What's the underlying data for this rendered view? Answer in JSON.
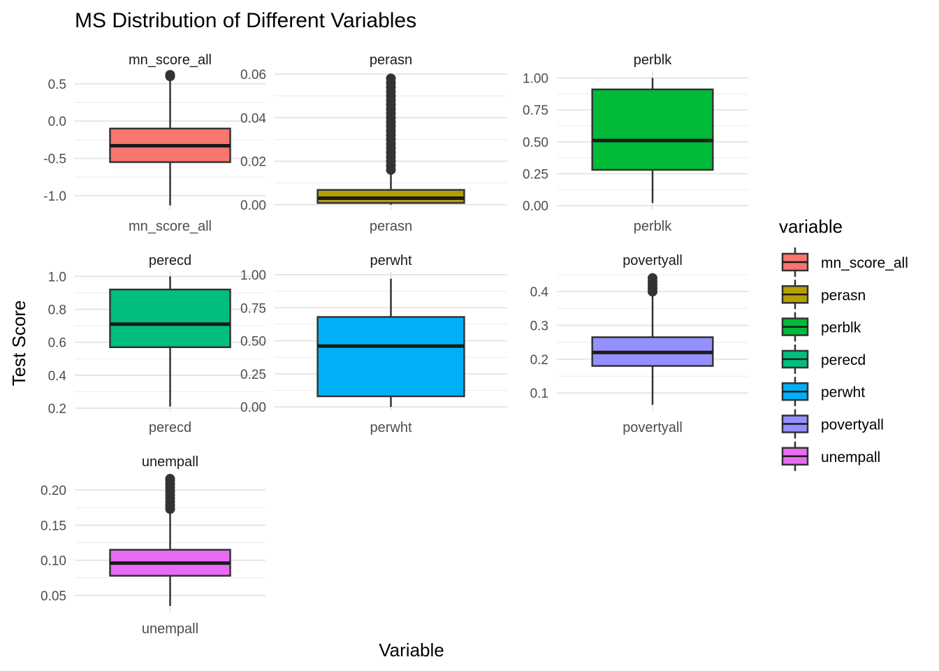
{
  "chart_data": {
    "type": "boxplot",
    "title": "MS Distribution of Different Variables",
    "xlabel": "Variable",
    "ylabel": "Test Score",
    "legend": {
      "title": "variable",
      "position": "right",
      "entries": [
        "mn_score_all",
        "perasn",
        "perblk",
        "perecd",
        "perwht",
        "povertyall",
        "unempall"
      ]
    },
    "grid": true,
    "panels": [
      {
        "name": "mn_score_all",
        "color": "#F8766D",
        "ylim": [
          -1.15,
          0.63
        ],
        "ticks": [
          -1.0,
          -0.5,
          0.0,
          0.5
        ],
        "tick_labels": [
          "-1.0",
          "-0.5",
          "0.0",
          "0.5"
        ],
        "whisker_low": -1.13,
        "q1": -0.55,
        "median": -0.33,
        "q3": -0.1,
        "whisker_high": 0.55,
        "outliers": [
          0.6,
          0.62
        ]
      },
      {
        "name": "perasn",
        "color": "#B79F00",
        "ylim": [
          -0.001,
          0.06
        ],
        "ticks": [
          0.0,
          0.02,
          0.04,
          0.06
        ],
        "tick_labels": [
          "0.00",
          "0.02",
          "0.04",
          "0.06"
        ],
        "whisker_low": 0.0,
        "q1": 0.0008,
        "median": 0.003,
        "q3": 0.0068,
        "whisker_high": 0.015,
        "outliers": [
          0.016,
          0.018,
          0.02,
          0.022,
          0.024,
          0.026,
          0.028,
          0.03,
          0.032,
          0.034,
          0.036,
          0.038,
          0.04,
          0.042,
          0.044,
          0.046,
          0.048,
          0.05,
          0.052,
          0.054,
          0.056,
          0.058
        ]
      },
      {
        "name": "perblk",
        "color": "#00BA38",
        "ylim": [
          -0.01,
          1.03
        ],
        "ticks": [
          0.0,
          0.25,
          0.5,
          0.75,
          1.0
        ],
        "tick_labels": [
          "0.00",
          "0.25",
          "0.50",
          "0.75",
          "1.00"
        ],
        "whisker_low": 0.02,
        "q1": 0.28,
        "median": 0.51,
        "q3": 0.91,
        "whisker_high": 1.0,
        "outliers": []
      },
      {
        "name": "perecd",
        "color": "#00BF7D",
        "ylim": [
          0.2,
          1.01
        ],
        "ticks": [
          0.2,
          0.4,
          0.6,
          0.8,
          1.0
        ],
        "tick_labels": [
          "0.2",
          "0.4",
          "0.6",
          "0.8",
          "1.0"
        ],
        "whisker_low": 0.21,
        "q1": 0.57,
        "median": 0.71,
        "q3": 0.92,
        "whisker_high": 1.0,
        "outliers": []
      },
      {
        "name": "perwht",
        "color": "#00B0F6",
        "ylim": [
          -0.01,
          1.0
        ],
        "ticks": [
          0.0,
          0.25,
          0.5,
          0.75,
          1.0
        ],
        "tick_labels": [
          "0.00",
          "0.25",
          "0.50",
          "0.75",
          "1.00"
        ],
        "whisker_low": 0.0,
        "q1": 0.08,
        "median": 0.46,
        "q3": 0.68,
        "whisker_high": 0.97,
        "outliers": []
      },
      {
        "name": "povertyall",
        "color": "#9590FF",
        "ylim": [
          0.055,
          0.45
        ],
        "ticks": [
          0.1,
          0.2,
          0.3,
          0.4
        ],
        "tick_labels": [
          "0.1",
          "0.2",
          "0.3",
          "0.4"
        ],
        "whisker_low": 0.065,
        "q1": 0.18,
        "median": 0.22,
        "q3": 0.265,
        "whisker_high": 0.395,
        "outliers": [
          0.4,
          0.41,
          0.42,
          0.43,
          0.44
        ]
      },
      {
        "name": "unempall",
        "color": "#E76BF3",
        "ylim": [
          0.03,
          0.22
        ],
        "ticks": [
          0.05,
          0.1,
          0.15,
          0.2
        ],
        "tick_labels": [
          "0.05",
          "0.10",
          "0.15",
          "0.20"
        ],
        "whisker_low": 0.035,
        "q1": 0.078,
        "median": 0.096,
        "q3": 0.115,
        "whisker_high": 0.17,
        "outliers": [
          0.173,
          0.178,
          0.183,
          0.188,
          0.193,
          0.198,
          0.203,
          0.208,
          0.213,
          0.216
        ]
      }
    ]
  }
}
